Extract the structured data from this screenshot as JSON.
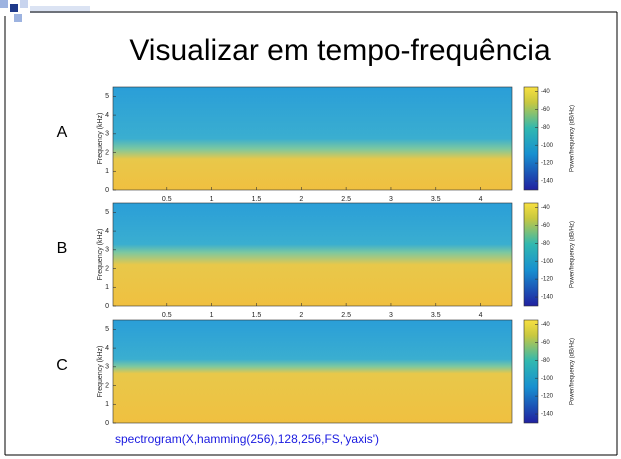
{
  "title": "Visualizar em tempo-frequência",
  "caption": "spectrogram(X,hamming(256),128,256,FS,'yaxis')",
  "panels": [
    {
      "label": "A",
      "ylabel": "Frequency (kHz)",
      "colorbar_label": "Power/frequency (dB/Hz)",
      "ylim": [
        0,
        5.5
      ],
      "yticks": [
        0,
        1,
        2,
        3,
        4,
        5
      ],
      "xlim": [
        -0.1,
        4.35
      ],
      "xticks": [
        0.5,
        1,
        1.5,
        2,
        2.5,
        3,
        3.5,
        4
      ],
      "clim": [
        -150,
        -35
      ],
      "colorbar_ticks": [
        -40,
        -60,
        -80,
        -100,
        -120,
        -140
      ]
    },
    {
      "label": "B",
      "ylabel": "Frequency (kHz)",
      "colorbar_label": "Power/frequency (dB/Hz)",
      "ylim": [
        0,
        5.5
      ],
      "yticks": [
        0,
        1,
        2,
        3,
        4,
        5
      ],
      "xlim": [
        -0.1,
        4.35
      ],
      "xticks": [
        0.5,
        1,
        1.5,
        2,
        2.5,
        3,
        3.5,
        4
      ],
      "clim": [
        -150,
        -35
      ],
      "colorbar_ticks": [
        -40,
        -60,
        -80,
        -100,
        -120,
        -140
      ]
    },
    {
      "label": "C",
      "ylabel": "Frequency (kHz)",
      "colorbar_label": "Power/frequency (dB/Hz)",
      "ylim": [
        0,
        5.5
      ],
      "yticks": [
        0,
        1,
        2,
        3,
        4,
        5
      ],
      "clim": [
        -150,
        -35
      ],
      "colorbar_ticks": [
        -40,
        -60,
        -80,
        -100,
        -120,
        -140
      ]
    }
  ]
}
